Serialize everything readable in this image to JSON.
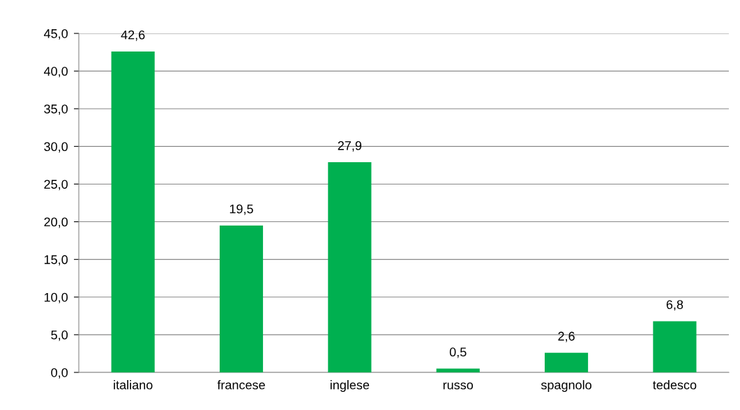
{
  "chart_data": {
    "type": "bar",
    "categories": [
      "italiano",
      "francese",
      "inglese",
      "russo",
      "spagnolo",
      "tedesco"
    ],
    "values": [
      42.6,
      19.5,
      27.9,
      0.5,
      2.6,
      6.8
    ],
    "value_labels": [
      "42,6",
      "19,5",
      "27,9",
      "0,5",
      "2,6",
      "6,8"
    ],
    "color": "#00b050",
    "ylim": [
      0,
      45
    ],
    "yticks": [
      {
        "value": 0,
        "label": "0,0"
      },
      {
        "value": 5,
        "label": "5,0"
      },
      {
        "value": 10,
        "label": "10,0"
      },
      {
        "value": 15,
        "label": "15,0"
      },
      {
        "value": 20,
        "label": "20,0"
      },
      {
        "value": 25,
        "label": "25,0"
      },
      {
        "value": 30,
        "label": "30,0"
      },
      {
        "value": 35,
        "label": "35,0"
      },
      {
        "value": 40,
        "label": "40,0"
      },
      {
        "value": 45,
        "label": "45,0"
      }
    ],
    "grid": "y"
  }
}
